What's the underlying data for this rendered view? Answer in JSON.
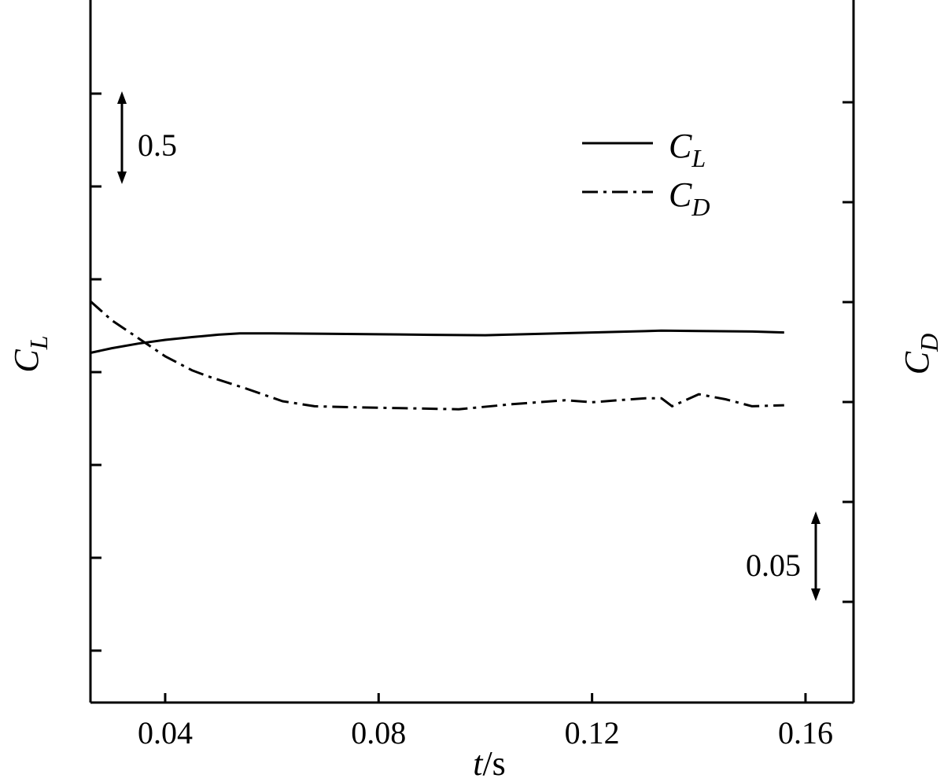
{
  "chart_data": {
    "type": "line",
    "xlabel": {
      "var": "t",
      "sep": "/",
      "unit": "s"
    },
    "x_ticks": [
      "0.04",
      "0.08",
      "0.12",
      "0.16"
    ],
    "x_tick_values": [
      0.04,
      0.08,
      0.12,
      0.16
    ],
    "xlim": [
      0.026,
      0.169
    ],
    "left_axis": {
      "label": {
        "main": "C",
        "sub": "L"
      },
      "scale_bar": {
        "label": "0.5",
        "value": 0.5
      },
      "tick_count": 7
    },
    "right_axis": {
      "label": {
        "main": "C",
        "sub": "D"
      },
      "scale_bar": {
        "label": "0.05",
        "value": 0.05
      },
      "tick_count": 6
    },
    "legend": {
      "placement": "top-right"
    },
    "series": [
      {
        "name": {
          "main": "C",
          "sub": "L"
        },
        "axis": "left",
        "style": "solid",
        "x": [
          0.026,
          0.03,
          0.035,
          0.04,
          0.045,
          0.05,
          0.054,
          0.06,
          0.07,
          0.08,
          0.09,
          0.1,
          0.11,
          0.12,
          0.13,
          0.133,
          0.14,
          0.15,
          0.156
        ],
        "y": [
          -0.07,
          -0.045,
          -0.02,
          0.0,
          0.015,
          0.028,
          0.035,
          0.035,
          0.033,
          0.03,
          0.027,
          0.025,
          0.032,
          0.04,
          0.047,
          0.05,
          0.048,
          0.045,
          0.04
        ]
      },
      {
        "name": {
          "main": "C",
          "sub": "D"
        },
        "axis": "right",
        "style": "dash-dot",
        "x": [
          0.026,
          0.03,
          0.035,
          0.04,
          0.045,
          0.048,
          0.055,
          0.062,
          0.068,
          0.075,
          0.085,
          0.095,
          0.105,
          0.115,
          0.12,
          0.125,
          0.13,
          0.133,
          0.135,
          0.14,
          0.145,
          0.15,
          0.156
        ],
        "y": [
          0.0,
          -0.0095,
          -0.0185,
          -0.0275,
          -0.0345,
          -0.0375,
          -0.0435,
          -0.05,
          -0.0525,
          -0.053,
          -0.0535,
          -0.054,
          -0.0515,
          -0.0495,
          -0.0505,
          -0.0495,
          -0.0485,
          -0.0485,
          -0.0525,
          -0.0465,
          -0.049,
          -0.0525,
          -0.052
        ]
      }
    ]
  }
}
